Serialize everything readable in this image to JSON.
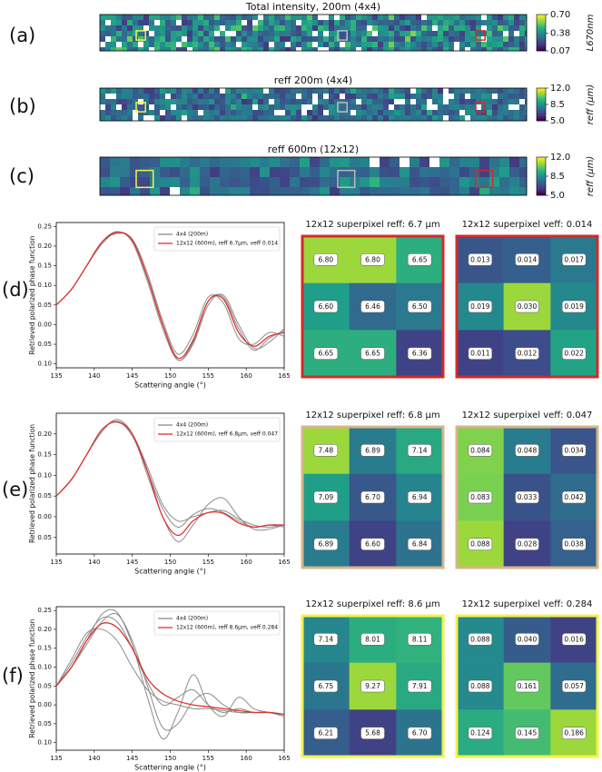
{
  "panel_labels": [
    "(a)",
    "(b)",
    "(c)",
    "(d)",
    "(e)",
    "(f)"
  ],
  "chart_data": [
    {
      "type": "image",
      "title": "Total intensity, 200m (4x4)",
      "colorbar_label": "L670nm",
      "ylim": [
        0.07,
        0.7
      ],
      "yticks": [
        0.07,
        0.38,
        {
          "value": 0.7,
          "label": "0.70"
        }
      ]
    },
    {
      "type": "image",
      "title": "reff 200m (4x4)",
      "colorbar_label": "reff (μm)",
      "ylim": [
        5,
        12
      ],
      "yticks": [
        {
          "value": 5,
          "label": "5.0"
        },
        8.5,
        {
          "value": 12,
          "label": "12.0"
        }
      ]
    },
    {
      "type": "image",
      "title": "reff 600m (12x12)",
      "colorbar_label": "reff (μm)",
      "ylim": [
        5,
        12
      ],
      "yticks": [
        {
          "value": 5,
          "label": "5.0"
        },
        8.5,
        {
          "value": 12,
          "label": "12.0"
        }
      ]
    },
    {
      "type": "line",
      "xlabel": "Scattering angle (°)",
      "ylabel": "Retrieved polarized phase function",
      "x": [
        135,
        137,
        139,
        141,
        143,
        145,
        147,
        149,
        151,
        153,
        155,
        157,
        159,
        161,
        163,
        165
      ],
      "xlim": [
        135,
        165
      ],
      "xticks": [
        135,
        140,
        145,
        150,
        155,
        160,
        165
      ],
      "ylim": [
        -0.11,
        0.26
      ],
      "yticks": [
        0.25,
        {
          "value": 0.2,
          "label": "0.20"
        },
        0.15,
        {
          "value": 0.1,
          "label": "0.10"
        },
        0.05,
        {
          "value": 0,
          "label": "0.00"
        },
        {
          "value": -0.05,
          "label": "0.05"
        },
        {
          "value": -0.1,
          "label": "0.10"
        }
      ],
      "series": [
        {
          "name": "4x4 (200m)",
          "color": "#8c8c8c",
          "lines": [
            [
              0.05,
              0.09,
              0.15,
              0.21,
              0.237,
              0.21,
              0.11,
              -0.01,
              -0.09,
              -0.05,
              0.05,
              0.075,
              0.0,
              -0.06,
              -0.045,
              -0.01
            ],
            [
              0.05,
              0.09,
              0.15,
              0.21,
              0.232,
              0.218,
              0.13,
              0.01,
              -0.075,
              -0.025,
              0.07,
              0.055,
              -0.035,
              -0.05,
              -0.02,
              -0.03
            ],
            [
              0.05,
              0.09,
              0.15,
              0.205,
              0.235,
              0.215,
              0.12,
              0.0,
              -0.09,
              -0.045,
              0.06,
              0.07,
              -0.01,
              -0.065,
              -0.035,
              -0.015
            ]
          ]
        },
        {
          "name": "12x12 (600m), reff 6.7μm, veff 0.014",
          "color": "#e0302c",
          "values": [
            0.05,
            0.09,
            0.15,
            0.21,
            0.235,
            0.215,
            0.12,
            0.0,
            -0.085,
            -0.04,
            0.06,
            0.065,
            -0.02,
            -0.055,
            -0.03,
            -0.02
          ]
        }
      ]
    },
    {
      "type": "heatmap",
      "title": "12x12 superpixel reff: 6.7 μm",
      "border": "#d42a2a",
      "values": [
        [
          6.8,
          6.8,
          6.65
        ],
        [
          6.6,
          6.46,
          6.5
        ],
        [
          6.65,
          6.65,
          6.36
        ]
      ],
      "value_labels": [
        [
          "6.80",
          "6.80",
          "6.65"
        ],
        [
          "6.60",
          "6.46",
          "6.50"
        ],
        [
          "6.65",
          "6.65",
          "6.36"
        ]
      ]
    },
    {
      "type": "heatmap",
      "title": "12x12 superpixel veff: 0.014",
      "border": "#d42a2a",
      "values": [
        [
          0.013,
          0.014,
          0.017
        ],
        [
          0.019,
          0.03,
          0.019
        ],
        [
          0.011,
          0.012,
          0.022
        ]
      ],
      "value_labels": [
        [
          "0.013",
          "0.014",
          "0.017"
        ],
        [
          "0.019",
          "0.030",
          "0.019"
        ],
        [
          "0.011",
          "0.012",
          "0.022"
        ]
      ]
    },
    {
      "type": "line",
      "xlabel": "Scattering angle (°)",
      "ylabel": "Retrieved polarized phase function",
      "x": [
        135,
        137,
        139,
        141,
        143,
        145,
        147,
        149,
        151,
        153,
        155,
        157,
        159,
        161,
        163,
        165
      ],
      "xlim": [
        135,
        165
      ],
      "xticks": [
        135,
        140,
        145,
        150,
        155,
        160,
        165
      ],
      "ylim": [
        -0.09,
        0.25
      ],
      "yticks": [
        {
          "value": 0.2,
          "label": "0.20"
        },
        0.15,
        {
          "value": 0.1,
          "label": "0.10"
        },
        0.05,
        {
          "value": 0,
          "label": "0.00"
        },
        {
          "value": -0.05,
          "label": "0.05"
        }
      ],
      "series": [
        {
          "name": "4x4 (200m)",
          "color": "#8c8c8c",
          "lines": [
            [
              0.05,
              0.09,
              0.15,
              0.205,
              0.235,
              0.2,
              0.1,
              0.0,
              -0.06,
              -0.02,
              0.03,
              0.045,
              0.0,
              -0.03,
              -0.03,
              -0.02
            ],
            [
              0.05,
              0.09,
              0.15,
              0.21,
              0.23,
              0.195,
              0.11,
              0.02,
              -0.025,
              0.005,
              0.02,
              0.01,
              -0.01,
              -0.025,
              -0.02,
              -0.025
            ],
            [
              0.05,
              0.09,
              0.15,
              0.21,
              0.228,
              0.2,
              0.12,
              0.03,
              -0.01,
              0.0,
              0.01,
              0.015,
              -0.005,
              -0.02,
              -0.025,
              -0.02
            ]
          ]
        },
        {
          "name": "12x12 (600m), reff 6.8μm, veff 0.047",
          "color": "#e0302c",
          "values": [
            0.05,
            0.09,
            0.15,
            0.21,
            0.23,
            0.2,
            0.11,
            0.0,
            -0.045,
            -0.01,
            0.01,
            0.008,
            -0.015,
            -0.025,
            -0.02,
            -0.02
          ]
        }
      ]
    },
    {
      "type": "heatmap",
      "title": "12x12 superpixel reff: 6.8 μm",
      "border": "#d8b48a",
      "values": [
        [
          7.48,
          6.89,
          7.14
        ],
        [
          7.09,
          6.7,
          6.94
        ],
        [
          6.89,
          6.6,
          6.84
        ]
      ],
      "value_labels": [
        [
          "7.48",
          "6.89",
          "7.14"
        ],
        [
          "7.09",
          "6.70",
          "6.94"
        ],
        [
          "6.89",
          "6.60",
          "6.84"
        ]
      ]
    },
    {
      "type": "heatmap",
      "title": "12x12 superpixel veff: 0.047",
      "border": "#d8b48a",
      "values": [
        [
          0.084,
          0.048,
          0.034
        ],
        [
          0.083,
          0.033,
          0.042
        ],
        [
          0.088,
          0.028,
          0.038
        ]
      ],
      "value_labels": [
        [
          "0.084",
          "0.048",
          "0.034"
        ],
        [
          "0.083",
          "0.033",
          "0.042"
        ],
        [
          "0.088",
          "0.028",
          "0.038"
        ]
      ]
    },
    {
      "type": "line",
      "xlabel": "Scattering angle (°)",
      "ylabel": "Retrieved polarized phase function",
      "x": [
        135,
        137,
        139,
        141,
        143,
        145,
        147,
        149,
        151,
        153,
        155,
        157,
        159,
        161,
        163,
        165
      ],
      "xlim": [
        135,
        165
      ],
      "xticks": [
        135,
        140,
        145,
        150,
        155,
        160,
        165
      ],
      "ylim": [
        -0.12,
        0.26
      ],
      "yticks": [
        0.25,
        {
          "value": 0.2,
          "label": "0.20"
        },
        0.15,
        {
          "value": 0.1,
          "label": "0.10"
        },
        0.05,
        {
          "value": 0,
          "label": "0.00"
        },
        {
          "value": -0.05,
          "label": "0.05"
        },
        {
          "value": -0.1,
          "label": "0.10"
        }
      ],
      "series": [
        {
          "name": "4x4 (200m)",
          "color": "#8c8c8c",
          "lines": [
            [
              0.05,
              0.1,
              0.17,
              0.24,
              0.245,
              0.16,
              0.02,
              -0.09,
              -0.02,
              0.08,
              0.0,
              -0.03,
              0.02,
              -0.01,
              -0.02,
              -0.03
            ],
            [
              0.05,
              0.11,
              0.18,
              0.23,
              0.22,
              0.15,
              0.06,
              0.0,
              0.02,
              0.04,
              0.0,
              -0.02,
              -0.01,
              -0.02,
              -0.02,
              -0.025
            ],
            [
              0.05,
              0.12,
              0.19,
              0.2,
              0.17,
              0.1,
              0.04,
              0.01,
              0.0,
              -0.01,
              -0.01,
              -0.015,
              -0.02,
              -0.02,
              -0.02,
              -0.025
            ],
            [
              0.05,
              0.1,
              0.16,
              0.22,
              0.24,
              0.17,
              0.05,
              -0.06,
              -0.05,
              0.01,
              0.03,
              0.0,
              -0.02,
              -0.02,
              -0.02,
              -0.03
            ]
          ]
        },
        {
          "name": "12x12 (600m), reff 8.6μm, veff 0.284",
          "color": "#e0302c",
          "values": [
            0.05,
            0.1,
            0.17,
            0.215,
            0.205,
            0.15,
            0.07,
            0.03,
            0.01,
            0.0,
            -0.005,
            -0.01,
            -0.015,
            -0.02,
            -0.02,
            -0.025
          ]
        }
      ]
    },
    {
      "type": "heatmap",
      "title": "12x12 superpixel reff: 8.6 μm",
      "border": "#f2f24a",
      "values": [
        [
          7.14,
          8.01,
          8.11
        ],
        [
          6.75,
          9.27,
          7.91
        ],
        [
          6.21,
          5.68,
          6.7
        ]
      ],
      "value_labels": [
        [
          "7.14",
          "8.01",
          "8.11"
        ],
        [
          "6.75",
          "9.27",
          "7.91"
        ],
        [
          "6.21",
          "5.68",
          "6.70"
        ]
      ]
    },
    {
      "type": "heatmap",
      "title": "12x12 superpixel veff: 0.284",
      "border": "#f2f24a",
      "values": [
        [
          0.088,
          0.04,
          0.016
        ],
        [
          0.088,
          0.161,
          0.057
        ],
        [
          0.124,
          0.145,
          0.186
        ]
      ],
      "value_labels": [
        [
          "0.088",
          "0.040",
          "0.016"
        ],
        [
          "0.088",
          "0.161",
          "0.057"
        ],
        [
          "0.124",
          "0.145",
          "0.186"
        ]
      ]
    }
  ]
}
